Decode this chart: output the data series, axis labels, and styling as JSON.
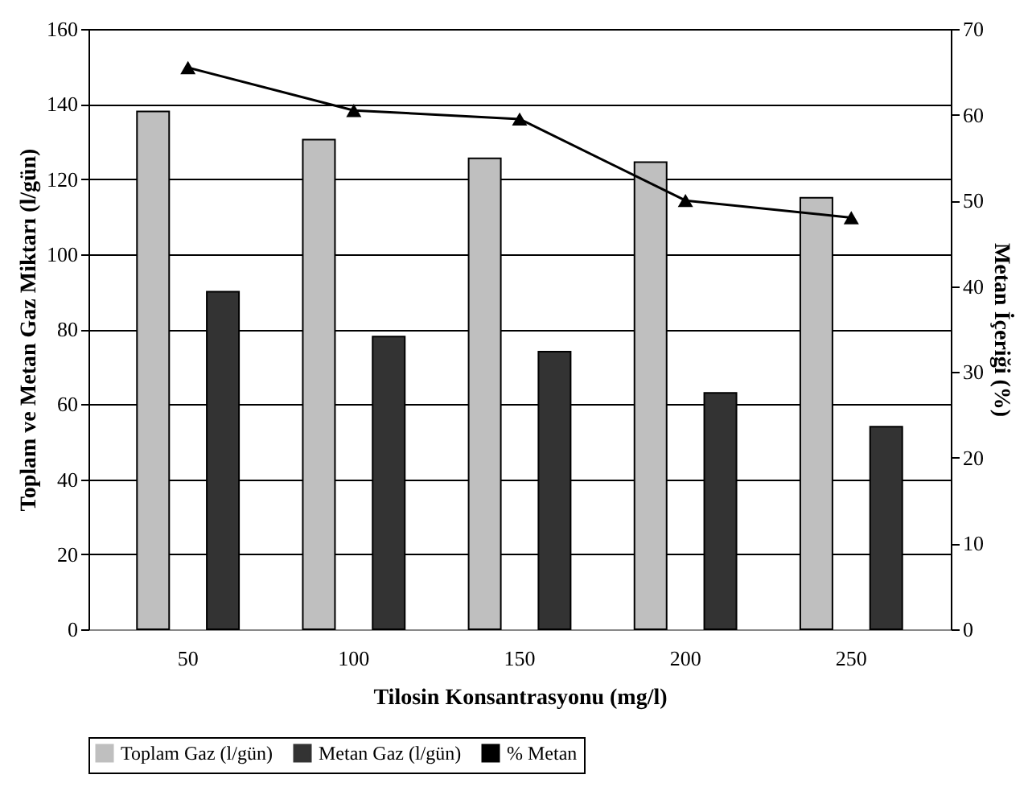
{
  "chart_data": {
    "type": "bar",
    "xlabel": "Tilosin Konsantrasyonu (mg/l)",
    "ylabel": "Toplam ve Metan Gaz Miktarı (l/gün)",
    "y2label": "Metan İçeriği (%)",
    "categories": [
      "50",
      "100",
      "150",
      "200",
      "250"
    ],
    "series": [
      {
        "name": "Toplam Gaz (l/gün)",
        "color": "#bfbfbf",
        "values": [
          138,
          130.5,
          125.5,
          124.5,
          115
        ]
      },
      {
        "name": "Metan Gaz (l/gün)",
        "color": "#333333",
        "values": [
          90,
          78,
          74,
          63,
          54
        ]
      },
      {
        "name": "% Metan",
        "type": "line",
        "axis": "y2",
        "color": "#000000",
        "marker": "triangle",
        "values": [
          65.5,
          60.5,
          59.5,
          50,
          48
        ]
      }
    ],
    "ylim": [
      0,
      160
    ],
    "yticks": [
      0,
      20,
      40,
      60,
      80,
      100,
      120,
      140,
      160
    ],
    "y2lim": [
      0,
      70
    ],
    "y2ticks": [
      0,
      10,
      20,
      30,
      40,
      50,
      60,
      70
    ],
    "grid": "y",
    "legend": "bottom"
  }
}
